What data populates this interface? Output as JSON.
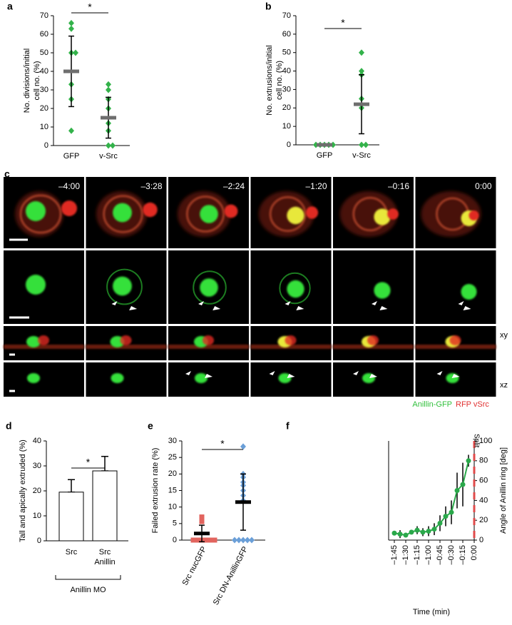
{
  "chart_data": [
    {
      "type": "strip",
      "label": "a",
      "ylabel": [
        "No. divisions/initial",
        "cell no. (%)"
      ],
      "categories": [
        "GFP",
        "v-Src"
      ],
      "points": [
        [
          66,
          63,
          50,
          50,
          33,
          25,
          8
        ],
        [
          33,
          30,
          25,
          20,
          12,
          8,
          0,
          0
        ]
      ],
      "means": [
        40,
        15
      ],
      "errors": [
        19,
        11
      ],
      "colors": [
        "#33b24a",
        "#33b24a"
      ],
      "markers": [
        "diamond",
        "diamond"
      ],
      "mean_color": "#6e6e6e",
      "ylim": [
        0,
        70
      ],
      "yticks": [
        0,
        10,
        20,
        30,
        40,
        50,
        60,
        70
      ],
      "significance": "*"
    },
    {
      "type": "strip",
      "label": "b",
      "ylabel": [
        "No. extrusions/initial",
        "cell no. (%)"
      ],
      "categories": [
        "GFP",
        "v-Src"
      ],
      "points": [
        [
          0,
          0,
          0,
          0,
          0
        ],
        [
          50,
          40,
          38,
          25,
          20,
          0,
          0
        ]
      ],
      "means": [
        0,
        22
      ],
      "errors": [
        0,
        16
      ],
      "colors": [
        "#33b24a",
        "#33b24a"
      ],
      "markers": [
        "diamond",
        "diamond"
      ],
      "mean_color": "#6e6e6e",
      "ylim": [
        0,
        70
      ],
      "yticks": [
        0,
        10,
        20,
        30,
        40,
        50,
        60,
        70
      ],
      "significance": "*"
    },
    {
      "type": "bar",
      "label": "d",
      "ylabel": [
        "Tall and apically extruded (%)"
      ],
      "categories": [
        [
          "Src"
        ],
        [
          "Src",
          "Anillin"
        ]
      ],
      "values": [
        19.5,
        28
      ],
      "errors": [
        5,
        5.8
      ],
      "color": "#ffffff",
      "ylim": [
        0,
        40
      ],
      "yticks": [
        0,
        10,
        20,
        30,
        40
      ],
      "significance": "*",
      "group_label": "Anillin MO"
    },
    {
      "type": "strip",
      "label": "e",
      "ylabel": [
        "Failed extrusion rate (%)"
      ],
      "categories": [
        "Src nucGFP",
        "Src DN-AnillinGFP"
      ],
      "points": [
        [
          7,
          6.7,
          6.2,
          5.6,
          0,
          0,
          0,
          0,
          0,
          0
        ],
        [
          28.3,
          20,
          19,
          17.5,
          16.5,
          15,
          13.5,
          12,
          0,
          0,
          0,
          0,
          0
        ]
      ],
      "means": [
        2,
        11.5
      ],
      "errors": [
        2.5,
        8.5
      ],
      "colors": [
        "#e2645e",
        "#6a9fd8"
      ],
      "markers": [
        "square",
        "diamond"
      ],
      "mean_color": "#000000",
      "ylim": [
        0,
        30
      ],
      "yticks": [
        0,
        5,
        10,
        15,
        20,
        25,
        30
      ],
      "significance": "*"
    },
    {
      "type": "line",
      "label": "f",
      "xlabel": "Time (min)",
      "ylabel": [
        "Angle of Anillin ring [deg]"
      ],
      "x": [
        -105,
        -97.5,
        -90,
        -82.5,
        -75,
        -67.5,
        -60,
        -52.5,
        -45,
        -37.5,
        -30,
        -22.5,
        -15,
        -7.5
      ],
      "values": [
        7,
        6,
        5,
        8,
        10,
        8,
        9,
        11,
        17,
        24,
        28,
        50,
        56,
        80
      ],
      "errors": [
        2,
        4,
        2,
        2,
        4,
        4,
        5,
        6,
        8,
        10,
        12,
        18,
        22,
        6
      ],
      "color": "#2aa84a",
      "xlim": [
        -112.5,
        0
      ],
      "xticks": [
        {
          "value": -105,
          "label": "–1:45"
        },
        {
          "value": -90,
          "label": "–1:30"
        },
        {
          "value": -75,
          "label": "–1:15"
        },
        {
          "value": -60,
          "label": "–1:00"
        },
        {
          "value": -45,
          "label": "–0:45"
        },
        {
          "value": -30,
          "label": "–0:30"
        },
        {
          "value": -15,
          "label": "–0:15"
        },
        {
          "value": 0,
          "label": "0:00"
        }
      ],
      "ylim": [
        0,
        100
      ],
      "yticks": [
        0,
        20,
        40,
        60,
        80,
        100
      ],
      "yaxis_side": "right",
      "event": {
        "x": 0,
        "label": "Split",
        "color": "#e04a4a"
      }
    }
  ],
  "panel_c": {
    "label": "c",
    "times": [
      "–4:00",
      "–3:28",
      "–2:24",
      "–1:20",
      "–0:16",
      "0:00"
    ],
    "views": [
      "xy",
      "xz"
    ],
    "channels": [
      {
        "name": "Anillin-GFP",
        "color": "#2fbf3a"
      },
      {
        "name": "RFP vSrc",
        "color": "#e03030"
      }
    ]
  }
}
